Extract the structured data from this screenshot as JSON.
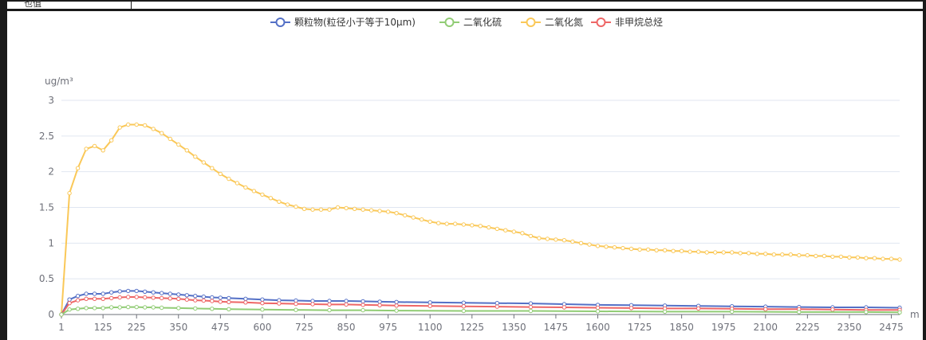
{
  "header_cell": {
    "text": "也值"
  },
  "chart_data": {
    "type": "line",
    "y_unit_label": "ug/m³",
    "x_unit_label": "m",
    "ylim": [
      0,
      3
    ],
    "y_ticks": [
      "0",
      "0.5",
      "1",
      "1.5",
      "2",
      "2.5",
      "3"
    ],
    "x_ticks": [
      "1",
      "125",
      "225",
      "350",
      "475",
      "600",
      "725",
      "850",
      "975",
      "1100",
      "1225",
      "1350",
      "1475",
      "1600",
      "1725",
      "1850",
      "1975",
      "2100",
      "2225",
      "2350",
      "2475"
    ],
    "x_max": 2500,
    "grid": true,
    "legend_position": "top",
    "series": [
      {
        "name": "颗粒物(粒径小于等于10μm)",
        "color": "#5470c6",
        "points": [
          [
            1,
            0
          ],
          [
            25,
            0.21
          ],
          [
            50,
            0.26
          ],
          [
            75,
            0.29
          ],
          [
            100,
            0.29
          ],
          [
            125,
            0.29
          ],
          [
            150,
            0.31
          ],
          [
            175,
            0.325
          ],
          [
            200,
            0.33
          ],
          [
            225,
            0.33
          ],
          [
            250,
            0.32
          ],
          [
            275,
            0.31
          ],
          [
            300,
            0.3
          ],
          [
            325,
            0.29
          ],
          [
            350,
            0.28
          ],
          [
            375,
            0.27
          ],
          [
            400,
            0.26
          ],
          [
            425,
            0.25
          ],
          [
            450,
            0.24
          ],
          [
            475,
            0.235
          ],
          [
            500,
            0.23
          ],
          [
            550,
            0.22
          ],
          [
            600,
            0.21
          ],
          [
            650,
            0.2
          ],
          [
            700,
            0.195
          ],
          [
            750,
            0.19
          ],
          [
            800,
            0.19
          ],
          [
            850,
            0.19
          ],
          [
            900,
            0.185
          ],
          [
            950,
            0.18
          ],
          [
            1000,
            0.175
          ],
          [
            1100,
            0.17
          ],
          [
            1200,
            0.165
          ],
          [
            1300,
            0.16
          ],
          [
            1400,
            0.155
          ],
          [
            1500,
            0.145
          ],
          [
            1600,
            0.135
          ],
          [
            1700,
            0.13
          ],
          [
            1800,
            0.125
          ],
          [
            1900,
            0.12
          ],
          [
            2000,
            0.115
          ],
          [
            2100,
            0.11
          ],
          [
            2200,
            0.105
          ],
          [
            2300,
            0.1
          ],
          [
            2400,
            0.1
          ],
          [
            2500,
            0.095
          ]
        ]
      },
      {
        "name": "二氧化硫",
        "color": "#91cc75",
        "points": [
          [
            1,
            0
          ],
          [
            25,
            0.07
          ],
          [
            50,
            0.08
          ],
          [
            75,
            0.09
          ],
          [
            100,
            0.09
          ],
          [
            125,
            0.09
          ],
          [
            150,
            0.1
          ],
          [
            175,
            0.1
          ],
          [
            200,
            0.105
          ],
          [
            225,
            0.105
          ],
          [
            250,
            0.1
          ],
          [
            275,
            0.1
          ],
          [
            300,
            0.095
          ],
          [
            350,
            0.09
          ],
          [
            400,
            0.085
          ],
          [
            450,
            0.08
          ],
          [
            500,
            0.075
          ],
          [
            600,
            0.07
          ],
          [
            700,
            0.065
          ],
          [
            800,
            0.06
          ],
          [
            900,
            0.06
          ],
          [
            1000,
            0.055
          ],
          [
            1200,
            0.05
          ],
          [
            1400,
            0.05
          ],
          [
            1600,
            0.045
          ],
          [
            1800,
            0.04
          ],
          [
            2000,
            0.04
          ],
          [
            2200,
            0.035
          ],
          [
            2400,
            0.035
          ],
          [
            2500,
            0.03
          ]
        ]
      },
      {
        "name": "二氧化氮",
        "color": "#fac858",
        "points": [
          [
            1,
            0
          ],
          [
            25,
            1.7
          ],
          [
            50,
            2.05
          ],
          [
            75,
            2.32
          ],
          [
            100,
            2.36
          ],
          [
            125,
            2.3
          ],
          [
            150,
            2.44
          ],
          [
            175,
            2.62
          ],
          [
            200,
            2.66
          ],
          [
            225,
            2.66
          ],
          [
            250,
            2.65
          ],
          [
            275,
            2.6
          ],
          [
            300,
            2.54
          ],
          [
            325,
            2.46
          ],
          [
            350,
            2.38
          ],
          [
            375,
            2.3
          ],
          [
            400,
            2.21
          ],
          [
            425,
            2.13
          ],
          [
            450,
            2.05
          ],
          [
            475,
            1.97
          ],
          [
            500,
            1.9
          ],
          [
            525,
            1.84
          ],
          [
            550,
            1.78
          ],
          [
            575,
            1.73
          ],
          [
            600,
            1.68
          ],
          [
            625,
            1.63
          ],
          [
            650,
            1.58
          ],
          [
            675,
            1.54
          ],
          [
            700,
            1.51
          ],
          [
            725,
            1.48
          ],
          [
            750,
            1.47
          ],
          [
            775,
            1.47
          ],
          [
            800,
            1.47
          ],
          [
            825,
            1.5
          ],
          [
            850,
            1.49
          ],
          [
            875,
            1.48
          ],
          [
            900,
            1.47
          ],
          [
            925,
            1.46
          ],
          [
            950,
            1.45
          ],
          [
            975,
            1.44
          ],
          [
            1000,
            1.42
          ],
          [
            1025,
            1.39
          ],
          [
            1050,
            1.36
          ],
          [
            1075,
            1.33
          ],
          [
            1100,
            1.3
          ],
          [
            1125,
            1.28
          ],
          [
            1150,
            1.27
          ],
          [
            1175,
            1.27
          ],
          [
            1200,
            1.26
          ],
          [
            1225,
            1.25
          ],
          [
            1250,
            1.24
          ],
          [
            1275,
            1.22
          ],
          [
            1300,
            1.2
          ],
          [
            1325,
            1.18
          ],
          [
            1350,
            1.16
          ],
          [
            1375,
            1.14
          ],
          [
            1400,
            1.1
          ],
          [
            1425,
            1.07
          ],
          [
            1450,
            1.06
          ],
          [
            1475,
            1.05
          ],
          [
            1500,
            1.04
          ],
          [
            1525,
            1.02
          ],
          [
            1550,
            1.0
          ],
          [
            1575,
            0.98
          ],
          [
            1600,
            0.96
          ],
          [
            1625,
            0.95
          ],
          [
            1650,
            0.94
          ],
          [
            1675,
            0.93
          ],
          [
            1700,
            0.92
          ],
          [
            1725,
            0.91
          ],
          [
            1750,
            0.91
          ],
          [
            1775,
            0.9
          ],
          [
            1800,
            0.9
          ],
          [
            1825,
            0.89
          ],
          [
            1850,
            0.89
          ],
          [
            1875,
            0.88
          ],
          [
            1900,
            0.88
          ],
          [
            1925,
            0.87
          ],
          [
            1950,
            0.87
          ],
          [
            1975,
            0.87
          ],
          [
            2000,
            0.87
          ],
          [
            2025,
            0.86
          ],
          [
            2050,
            0.86
          ],
          [
            2075,
            0.85
          ],
          [
            2100,
            0.85
          ],
          [
            2125,
            0.84
          ],
          [
            2150,
            0.84
          ],
          [
            2175,
            0.84
          ],
          [
            2200,
            0.83
          ],
          [
            2225,
            0.83
          ],
          [
            2250,
            0.82
          ],
          [
            2275,
            0.82
          ],
          [
            2300,
            0.81
          ],
          [
            2325,
            0.81
          ],
          [
            2350,
            0.8
          ],
          [
            2375,
            0.8
          ],
          [
            2400,
            0.79
          ],
          [
            2425,
            0.79
          ],
          [
            2450,
            0.78
          ],
          [
            2475,
            0.78
          ],
          [
            2500,
            0.77
          ]
        ]
      },
      {
        "name": "非甲烷总烃",
        "color": "#ee6666",
        "points": [
          [
            1,
            0
          ],
          [
            25,
            0.16
          ],
          [
            50,
            0.2
          ],
          [
            75,
            0.22
          ],
          [
            100,
            0.22
          ],
          [
            125,
            0.22
          ],
          [
            150,
            0.23
          ],
          [
            175,
            0.24
          ],
          [
            200,
            0.245
          ],
          [
            225,
            0.245
          ],
          [
            250,
            0.24
          ],
          [
            275,
            0.235
          ],
          [
            300,
            0.23
          ],
          [
            325,
            0.225
          ],
          [
            350,
            0.22
          ],
          [
            375,
            0.21
          ],
          [
            400,
            0.2
          ],
          [
            425,
            0.195
          ],
          [
            450,
            0.19
          ],
          [
            475,
            0.18
          ],
          [
            500,
            0.175
          ],
          [
            550,
            0.17
          ],
          [
            600,
            0.16
          ],
          [
            650,
            0.155
          ],
          [
            700,
            0.15
          ],
          [
            750,
            0.145
          ],
          [
            800,
            0.14
          ],
          [
            850,
            0.14
          ],
          [
            900,
            0.135
          ],
          [
            950,
            0.13
          ],
          [
            1000,
            0.125
          ],
          [
            1100,
            0.12
          ],
          [
            1200,
            0.115
          ],
          [
            1300,
            0.11
          ],
          [
            1400,
            0.105
          ],
          [
            1500,
            0.1
          ],
          [
            1600,
            0.095
          ],
          [
            1700,
            0.09
          ],
          [
            1800,
            0.085
          ],
          [
            1900,
            0.085
          ],
          [
            2000,
            0.08
          ],
          [
            2100,
            0.075
          ],
          [
            2200,
            0.075
          ],
          [
            2300,
            0.07
          ],
          [
            2400,
            0.065
          ],
          [
            2500,
            0.065
          ]
        ]
      }
    ]
  }
}
